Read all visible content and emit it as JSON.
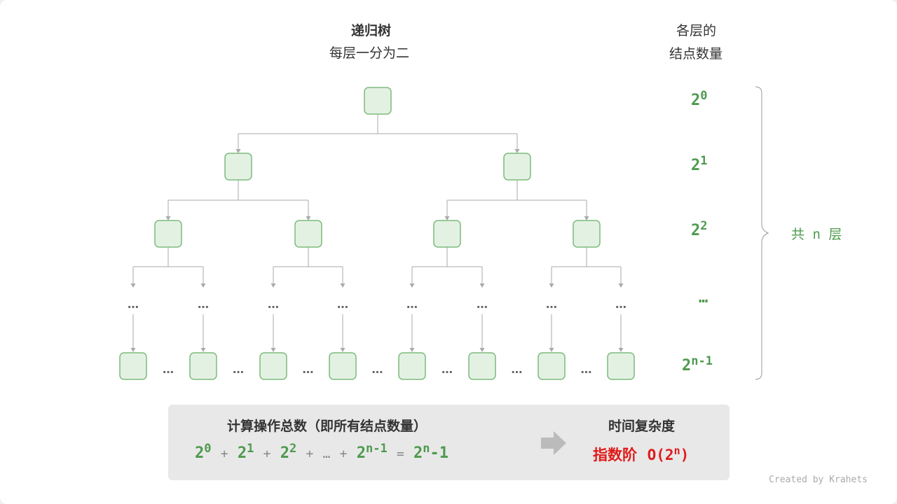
{
  "tree": {
    "title": "递归树",
    "subtitle": "每层一分为二",
    "ellipsis": "…"
  },
  "levels": {
    "title_line1": "各层的",
    "title_line2": "结点数量",
    "items": [
      {
        "base": "2",
        "exp": "0"
      },
      {
        "base": "2",
        "exp": "1"
      },
      {
        "base": "2",
        "exp": "2"
      },
      {
        "base": "",
        "exp": "",
        "text": "…"
      },
      {
        "base": "2",
        "exp": "n-1"
      }
    ],
    "brace_label": "共 n 层"
  },
  "summary": {
    "title": "计算操作总数（即所有结点数量）",
    "terms": [
      {
        "base": "2",
        "exp": "0"
      },
      {
        "base": "2",
        "exp": "1"
      },
      {
        "base": "2",
        "exp": "2"
      },
      {
        "text": "…"
      },
      {
        "base": "2",
        "exp": "n-1"
      }
    ],
    "plus": "+",
    "equals": "=",
    "result_base": "2",
    "result_exp": "n",
    "result_tail": "-1",
    "complexity_title": "时间复杂度",
    "complexity_name": "指数阶",
    "complexity_expr_pre": "O(2",
    "complexity_expr_exp": "n",
    "complexity_expr_post": ")"
  },
  "credit": "Created by Krahets",
  "colors": {
    "node_fill": "#e3f1e3",
    "node_stroke": "#7cbb7c",
    "accent_green": "#4e9a4e",
    "accent_red": "#e01b1b",
    "line": "#aaaaaa"
  }
}
